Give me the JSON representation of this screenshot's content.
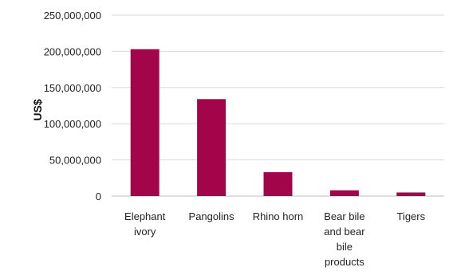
{
  "chart_data": {
    "type": "bar",
    "title": "",
    "xlabel": "",
    "ylabel": "US$",
    "ylim": [
      0,
      250000000
    ],
    "yticks": [
      0,
      50000000,
      100000000,
      150000000,
      200000000,
      250000000
    ],
    "ytick_labels": [
      "0",
      "50,000,000",
      "100,000,000",
      "150,000,000",
      "200,000,000",
      "250,000,000"
    ],
    "grid": true,
    "legend": "none",
    "categories": [
      "Elephant ivory",
      "Pangolins",
      "Rhino horn",
      "Bear bile and bear bile products",
      "Tigers"
    ],
    "category_label_lines": [
      [
        "Elephant",
        "ivory"
      ],
      [
        "Pangolins"
      ],
      [
        "Rhino horn"
      ],
      [
        "Bear bile",
        "and bear",
        "bile",
        "products"
      ],
      [
        "Tigers"
      ]
    ],
    "values": [
      203000000,
      134000000,
      33000000,
      8000000,
      5000000
    ],
    "colors": {
      "bar": "#a3054a",
      "grid": "#d9d9d9",
      "axis": "#bfbfbf"
    }
  }
}
